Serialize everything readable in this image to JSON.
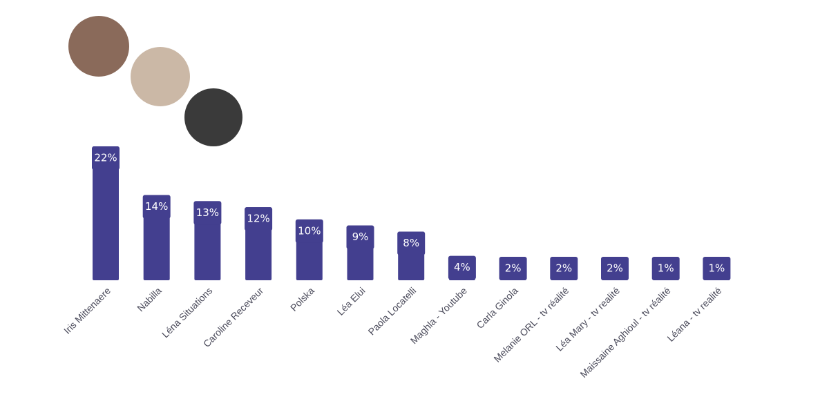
{
  "chart_data": {
    "type": "bar",
    "categories": [
      "Iris Mittenaere",
      "Nabilla",
      "Léna Situations",
      "Caroline Receveur",
      "Polska",
      "Léa Elui",
      "Paola Locatelli",
      "Maghla - Youtube",
      "Carla Ginola",
      "Melanie ORL - tv réalité",
      "Léa Mary - tv realité",
      "Maissaine Aghioul - tv réalité",
      "Léana - tv realité"
    ],
    "values": [
      22,
      14,
      13,
      12,
      10,
      9,
      8,
      4,
      2,
      2,
      2,
      1,
      1
    ],
    "value_labels": [
      "22%",
      "14%",
      "13%",
      "12%",
      "10%",
      "9%",
      "8%",
      "4%",
      "2%",
      "2%",
      "2%",
      "1%",
      "1%"
    ],
    "color": "#433f8f"
  }
}
